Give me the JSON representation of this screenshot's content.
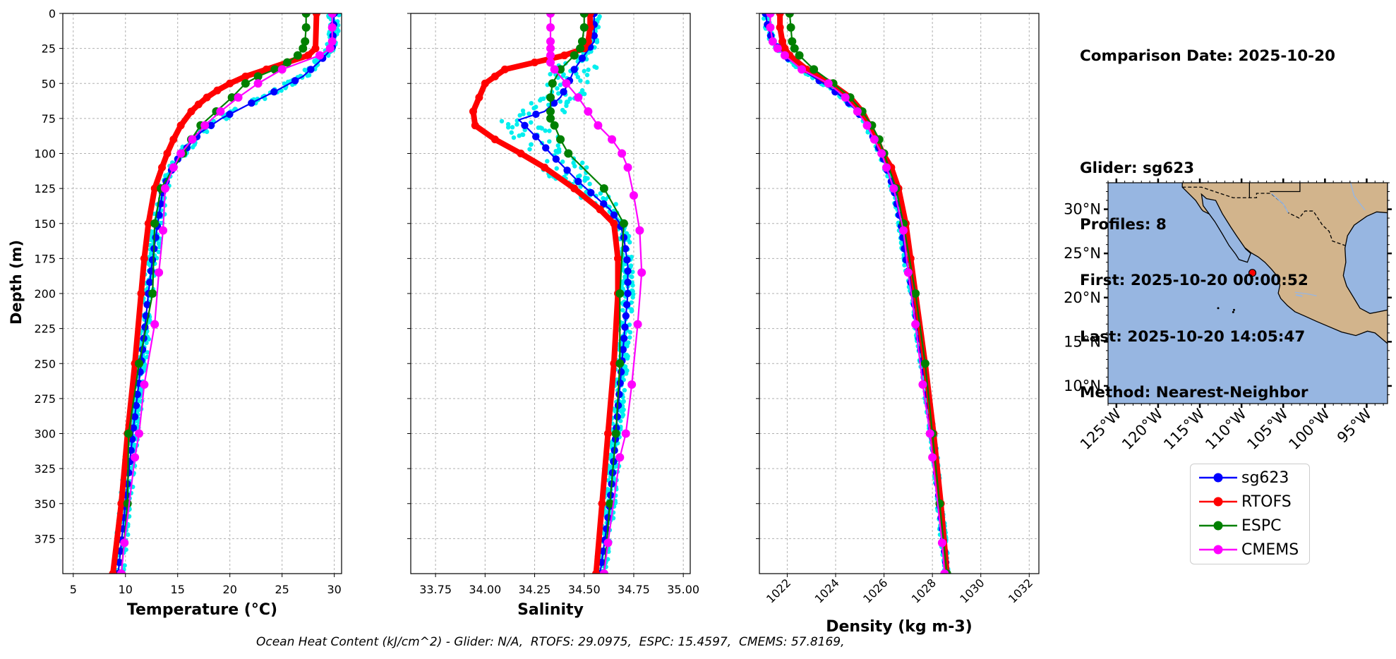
{
  "info": {
    "comparison_date": "Comparison Date: 2025-10-20",
    "glider": "Glider: sg623",
    "profiles": "Profiles: 8",
    "first": "First: 2025-10-20 00:00:52",
    "last": "Last: 2025-10-20 14:05:47",
    "method": "Method: Nearest-Neighbor"
  },
  "footer": "Ocean Heat Content (kJ/cm^2) - Glider: N/A,  RTOFS: 29.0975,  ESPC: 15.4597,  CMEMS: 57.8169,",
  "legend": [
    {
      "name": "sg623",
      "color": "#0000ff"
    },
    {
      "name": "RTOFS",
      "color": "#ff0000"
    },
    {
      "name": "ESPC",
      "color": "#008000"
    },
    {
      "name": "CMEMS",
      "color": "#ff00ff"
    }
  ],
  "map": {
    "lat_ticks": [
      "30°N",
      "25°N",
      "20°N",
      "15°N",
      "10°N"
    ],
    "lat_values": [
      30,
      25,
      20,
      15,
      10
    ],
    "lon_ticks": [
      "125°W",
      "120°W",
      "115°W",
      "110°W",
      "105°W",
      "100°W",
      "95°W"
    ],
    "lon_values": [
      -125,
      -120,
      -115,
      -110,
      -105,
      -100,
      -95
    ],
    "extent": {
      "lon": [
        -126,
        -92.5
      ],
      "lat": [
        8,
        33
      ]
    },
    "glider_position": {
      "lon": -108.7,
      "lat": 22.8
    },
    "ocean_color": "#97b6e1",
    "land_color": "#d2b48c"
  },
  "chart_data": [
    {
      "type": "line",
      "xlabel": "Temperature (°C)",
      "ylabel": "Depth (m)",
      "xlim": [
        4,
        30.7
      ],
      "ylim": [
        400,
        0
      ],
      "xticks": [
        5,
        10,
        15,
        20,
        25,
        30
      ],
      "yticks": [
        0,
        25,
        50,
        75,
        100,
        125,
        150,
        175,
        200,
        225,
        250,
        275,
        300,
        325,
        350,
        375
      ],
      "grid": true,
      "series": [
        {
          "name": "sg623",
          "color": "#0000ff",
          "depth": [
            0,
            25,
            35,
            45,
            55,
            65,
            75,
            85,
            95,
            105,
            115,
            125,
            150,
            175,
            200,
            250,
            300,
            350,
            400
          ],
          "values": [
            30,
            29.8,
            28.5,
            27,
            24.5,
            21.8,
            19.2,
            17.2,
            16,
            14.9,
            14.2,
            13.6,
            13.1,
            12.6,
            12.2,
            11.5,
            10.7,
            10,
            9.3
          ]
        },
        {
          "name": "RTOFS",
          "color": "#ff0000",
          "depth": [
            0,
            25,
            30,
            35,
            40,
            45,
            50,
            55,
            60,
            65,
            70,
            80,
            90,
            100,
            110,
            125,
            150,
            175,
            200,
            250,
            300,
            350,
            400
          ],
          "values": [
            28.3,
            28.2,
            27.5,
            25.5,
            23.5,
            21.5,
            20,
            18.8,
            17.8,
            17,
            16.3,
            15.3,
            14.6,
            14,
            13.5,
            12.8,
            12.2,
            11.8,
            11.5,
            10.9,
            10.2,
            9.6,
            8.8
          ]
        },
        {
          "name": "ESPC",
          "color": "#008000",
          "depth": [
            0,
            10,
            20,
            25,
            30,
            35,
            40,
            45,
            50,
            60,
            70,
            80,
            90,
            100,
            125,
            150,
            200,
            250,
            300,
            350,
            400
          ],
          "values": [
            27.3,
            27.3,
            27.2,
            27,
            26.5,
            25.5,
            24.3,
            22.7,
            21.5,
            20.2,
            18.7,
            17.2,
            16.3,
            15.5,
            13.4,
            12.8,
            12.6,
            11.3,
            10.3,
            10.2,
            9.6
          ]
        },
        {
          "name": "CMEMS",
          "color": "#ff00ff",
          "depth": [
            0,
            10,
            20,
            25,
            30,
            40,
            50,
            60,
            70,
            80,
            90,
            100,
            110,
            125,
            155,
            185,
            222,
            265,
            300,
            317,
            378,
            400
          ],
          "values": [
            29.8,
            29.8,
            29.8,
            29.6,
            28.6,
            25,
            22.7,
            20.8,
            19.1,
            17.6,
            16.4,
            15.3,
            14.6,
            13.8,
            13.6,
            13.2,
            12.8,
            11.8,
            11.3,
            10.9,
            9.9,
            9.6
          ]
        }
      ]
    },
    {
      "type": "line",
      "xlabel": "Salinity",
      "xlim": [
        33.625,
        35.035
      ],
      "ylim": [
        400,
        0
      ],
      "xticks": [
        "33.75",
        "34.00",
        "34.25",
        "34.50",
        "34.75",
        "35.00"
      ],
      "xtick_values": [
        33.75,
        34.0,
        34.25,
        34.5,
        34.75,
        35.0
      ],
      "grid": true,
      "series": [
        {
          "name": "sg623",
          "color": "#0000ff",
          "depth": [
            0,
            20,
            30,
            40,
            50,
            60,
            70,
            76,
            80,
            90,
            100,
            110,
            120,
            130,
            140,
            150,
            160,
            180,
            200,
            250,
            300,
            350,
            400
          ],
          "values": [
            34.55,
            34.55,
            34.5,
            34.45,
            34.42,
            34.38,
            34.3,
            34.17,
            34.2,
            34.27,
            34.33,
            34.4,
            34.47,
            34.55,
            34.63,
            34.68,
            34.7,
            34.72,
            34.72,
            34.69,
            34.66,
            34.63,
            34.58
          ]
        },
        {
          "name": "RTOFS",
          "color": "#ff0000",
          "depth": [
            0,
            10,
            20,
            25,
            30,
            35,
            40,
            45,
            50,
            60,
            70,
            80,
            90,
            100,
            110,
            125,
            140,
            150,
            175,
            200,
            250,
            300,
            350,
            400
          ],
          "values": [
            34.53,
            34.53,
            34.52,
            34.5,
            34.4,
            34.25,
            34.1,
            34.05,
            34.0,
            33.97,
            33.94,
            33.95,
            34.05,
            34.18,
            34.3,
            34.45,
            34.58,
            34.65,
            34.67,
            34.67,
            34.65,
            34.62,
            34.59,
            34.56
          ]
        },
        {
          "name": "ESPC",
          "color": "#008000",
          "depth": [
            0,
            10,
            20,
            25,
            30,
            40,
            50,
            60,
            70,
            75,
            80,
            90,
            100,
            125,
            150,
            200,
            250,
            300,
            350,
            400
          ],
          "values": [
            34.5,
            34.5,
            34.49,
            34.48,
            34.45,
            34.38,
            34.34,
            34.33,
            34.33,
            34.33,
            34.35,
            34.38,
            34.42,
            34.6,
            34.7,
            34.68,
            34.68,
            34.66,
            34.63,
            34.6
          ]
        },
        {
          "name": "CMEMS",
          "color": "#ff00ff",
          "depth": [
            0,
            10,
            20,
            25,
            30,
            35,
            40,
            50,
            60,
            70,
            80,
            90,
            100,
            110,
            130,
            155,
            185,
            222,
            265,
            300,
            317,
            378,
            400
          ],
          "values": [
            34.33,
            34.33,
            34.33,
            34.33,
            34.33,
            34.33,
            34.35,
            34.41,
            34.47,
            34.52,
            34.57,
            34.64,
            34.69,
            34.72,
            34.75,
            34.78,
            34.79,
            34.77,
            34.74,
            34.71,
            34.68,
            34.62,
            34.6
          ]
        }
      ]
    },
    {
      "type": "line",
      "xlabel": "Density (kg m-3)",
      "xlim": [
        1020.85,
        1032.4
      ],
      "ylim": [
        400,
        0
      ],
      "xticks": [
        "1022",
        "1024",
        "1026",
        "1028",
        "1030",
        "1032"
      ],
      "xtick_values": [
        1022,
        1024,
        1026,
        1028,
        1030,
        1032
      ],
      "grid": true,
      "series": [
        {
          "name": "sg623",
          "color": "#0000ff",
          "depth": [
            0,
            10,
            20,
            30,
            40,
            50,
            60,
            70,
            80,
            90,
            100,
            110,
            125,
            150,
            175,
            200,
            250,
            300,
            350,
            400
          ],
          "values": [
            1021.1,
            1021.2,
            1021.4,
            1021.9,
            1022.6,
            1023.5,
            1024.3,
            1024.9,
            1025.3,
            1025.6,
            1025.9,
            1026.1,
            1026.4,
            1026.7,
            1026.9,
            1027.2,
            1027.6,
            1028.0,
            1028.3,
            1028.6
          ]
        },
        {
          "name": "RTOFS",
          "color": "#ff0000",
          "depth": [
            0,
            10,
            20,
            25,
            30,
            40,
            50,
            60,
            70,
            80,
            90,
            100,
            110,
            125,
            150,
            175,
            200,
            250,
            300,
            350,
            400
          ],
          "values": [
            1021.7,
            1021.7,
            1021.8,
            1021.9,
            1022.1,
            1022.8,
            1023.8,
            1024.6,
            1025.1,
            1025.4,
            1025.7,
            1025.95,
            1026.3,
            1026.6,
            1026.9,
            1027.1,
            1027.3,
            1027.7,
            1028.05,
            1028.35,
            1028.6
          ]
        },
        {
          "name": "ESPC",
          "color": "#008000",
          "depth": [
            0,
            10,
            20,
            25,
            30,
            40,
            50,
            60,
            70,
            80,
            90,
            100,
            125,
            150,
            200,
            250,
            300,
            350,
            400
          ],
          "values": [
            1022.1,
            1022.15,
            1022.2,
            1022.3,
            1022.5,
            1023.1,
            1023.9,
            1024.6,
            1025.1,
            1025.5,
            1025.8,
            1026.0,
            1026.5,
            1026.8,
            1027.3,
            1027.7,
            1028.0,
            1028.3,
            1028.6
          ]
        },
        {
          "name": "CMEMS",
          "color": "#ff00ff",
          "depth": [
            0,
            10,
            20,
            25,
            30,
            40,
            50,
            60,
            70,
            80,
            90,
            100,
            110,
            125,
            155,
            185,
            222,
            265,
            300,
            317,
            378,
            400
          ],
          "values": [
            1021.3,
            1021.3,
            1021.4,
            1021.6,
            1021.9,
            1022.6,
            1023.7,
            1024.4,
            1024.9,
            1025.3,
            1025.6,
            1025.9,
            1026.1,
            1026.4,
            1026.8,
            1027.0,
            1027.3,
            1027.6,
            1027.9,
            1028.0,
            1028.4,
            1028.5
          ]
        }
      ]
    }
  ]
}
